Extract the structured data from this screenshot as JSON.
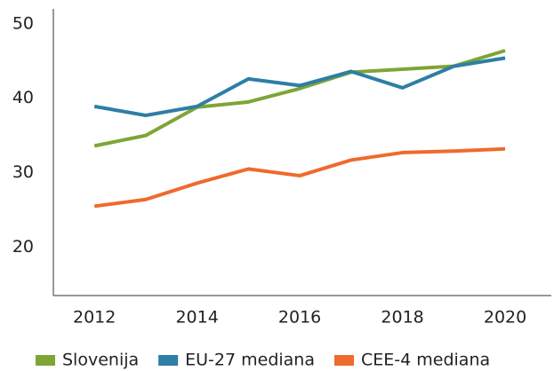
{
  "chart_data": {
    "type": "line",
    "x": [
      2012,
      2013,
      2014,
      2015,
      2016,
      2017,
      2018,
      2019,
      2020
    ],
    "series": [
      {
        "name": "Slovenija",
        "color": "#7ea536",
        "values": [
          33.6,
          35.0,
          38.8,
          39.5,
          41.3,
          43.5,
          43.9,
          44.3,
          46.4
        ]
      },
      {
        "name": "EU-27 mediana",
        "color": "#2e7ea5",
        "values": [
          38.9,
          37.7,
          38.9,
          42.6,
          41.7,
          43.6,
          41.4,
          44.3,
          45.4
        ]
      },
      {
        "name": "CEE-4 mediana",
        "color": "#ef6a2d",
        "values": [
          25.5,
          26.4,
          28.6,
          30.5,
          29.6,
          31.7,
          32.7,
          32.9,
          33.2
        ]
      }
    ],
    "xlim": [
      2011.2,
      2020.9
    ],
    "xticks": [
      2012,
      2014,
      2016,
      2018,
      2020
    ],
    "ylim": [
      13.5,
      52
    ],
    "yticks": [
      20,
      30,
      40,
      50
    ],
    "grid": false,
    "legend": "bottom"
  }
}
